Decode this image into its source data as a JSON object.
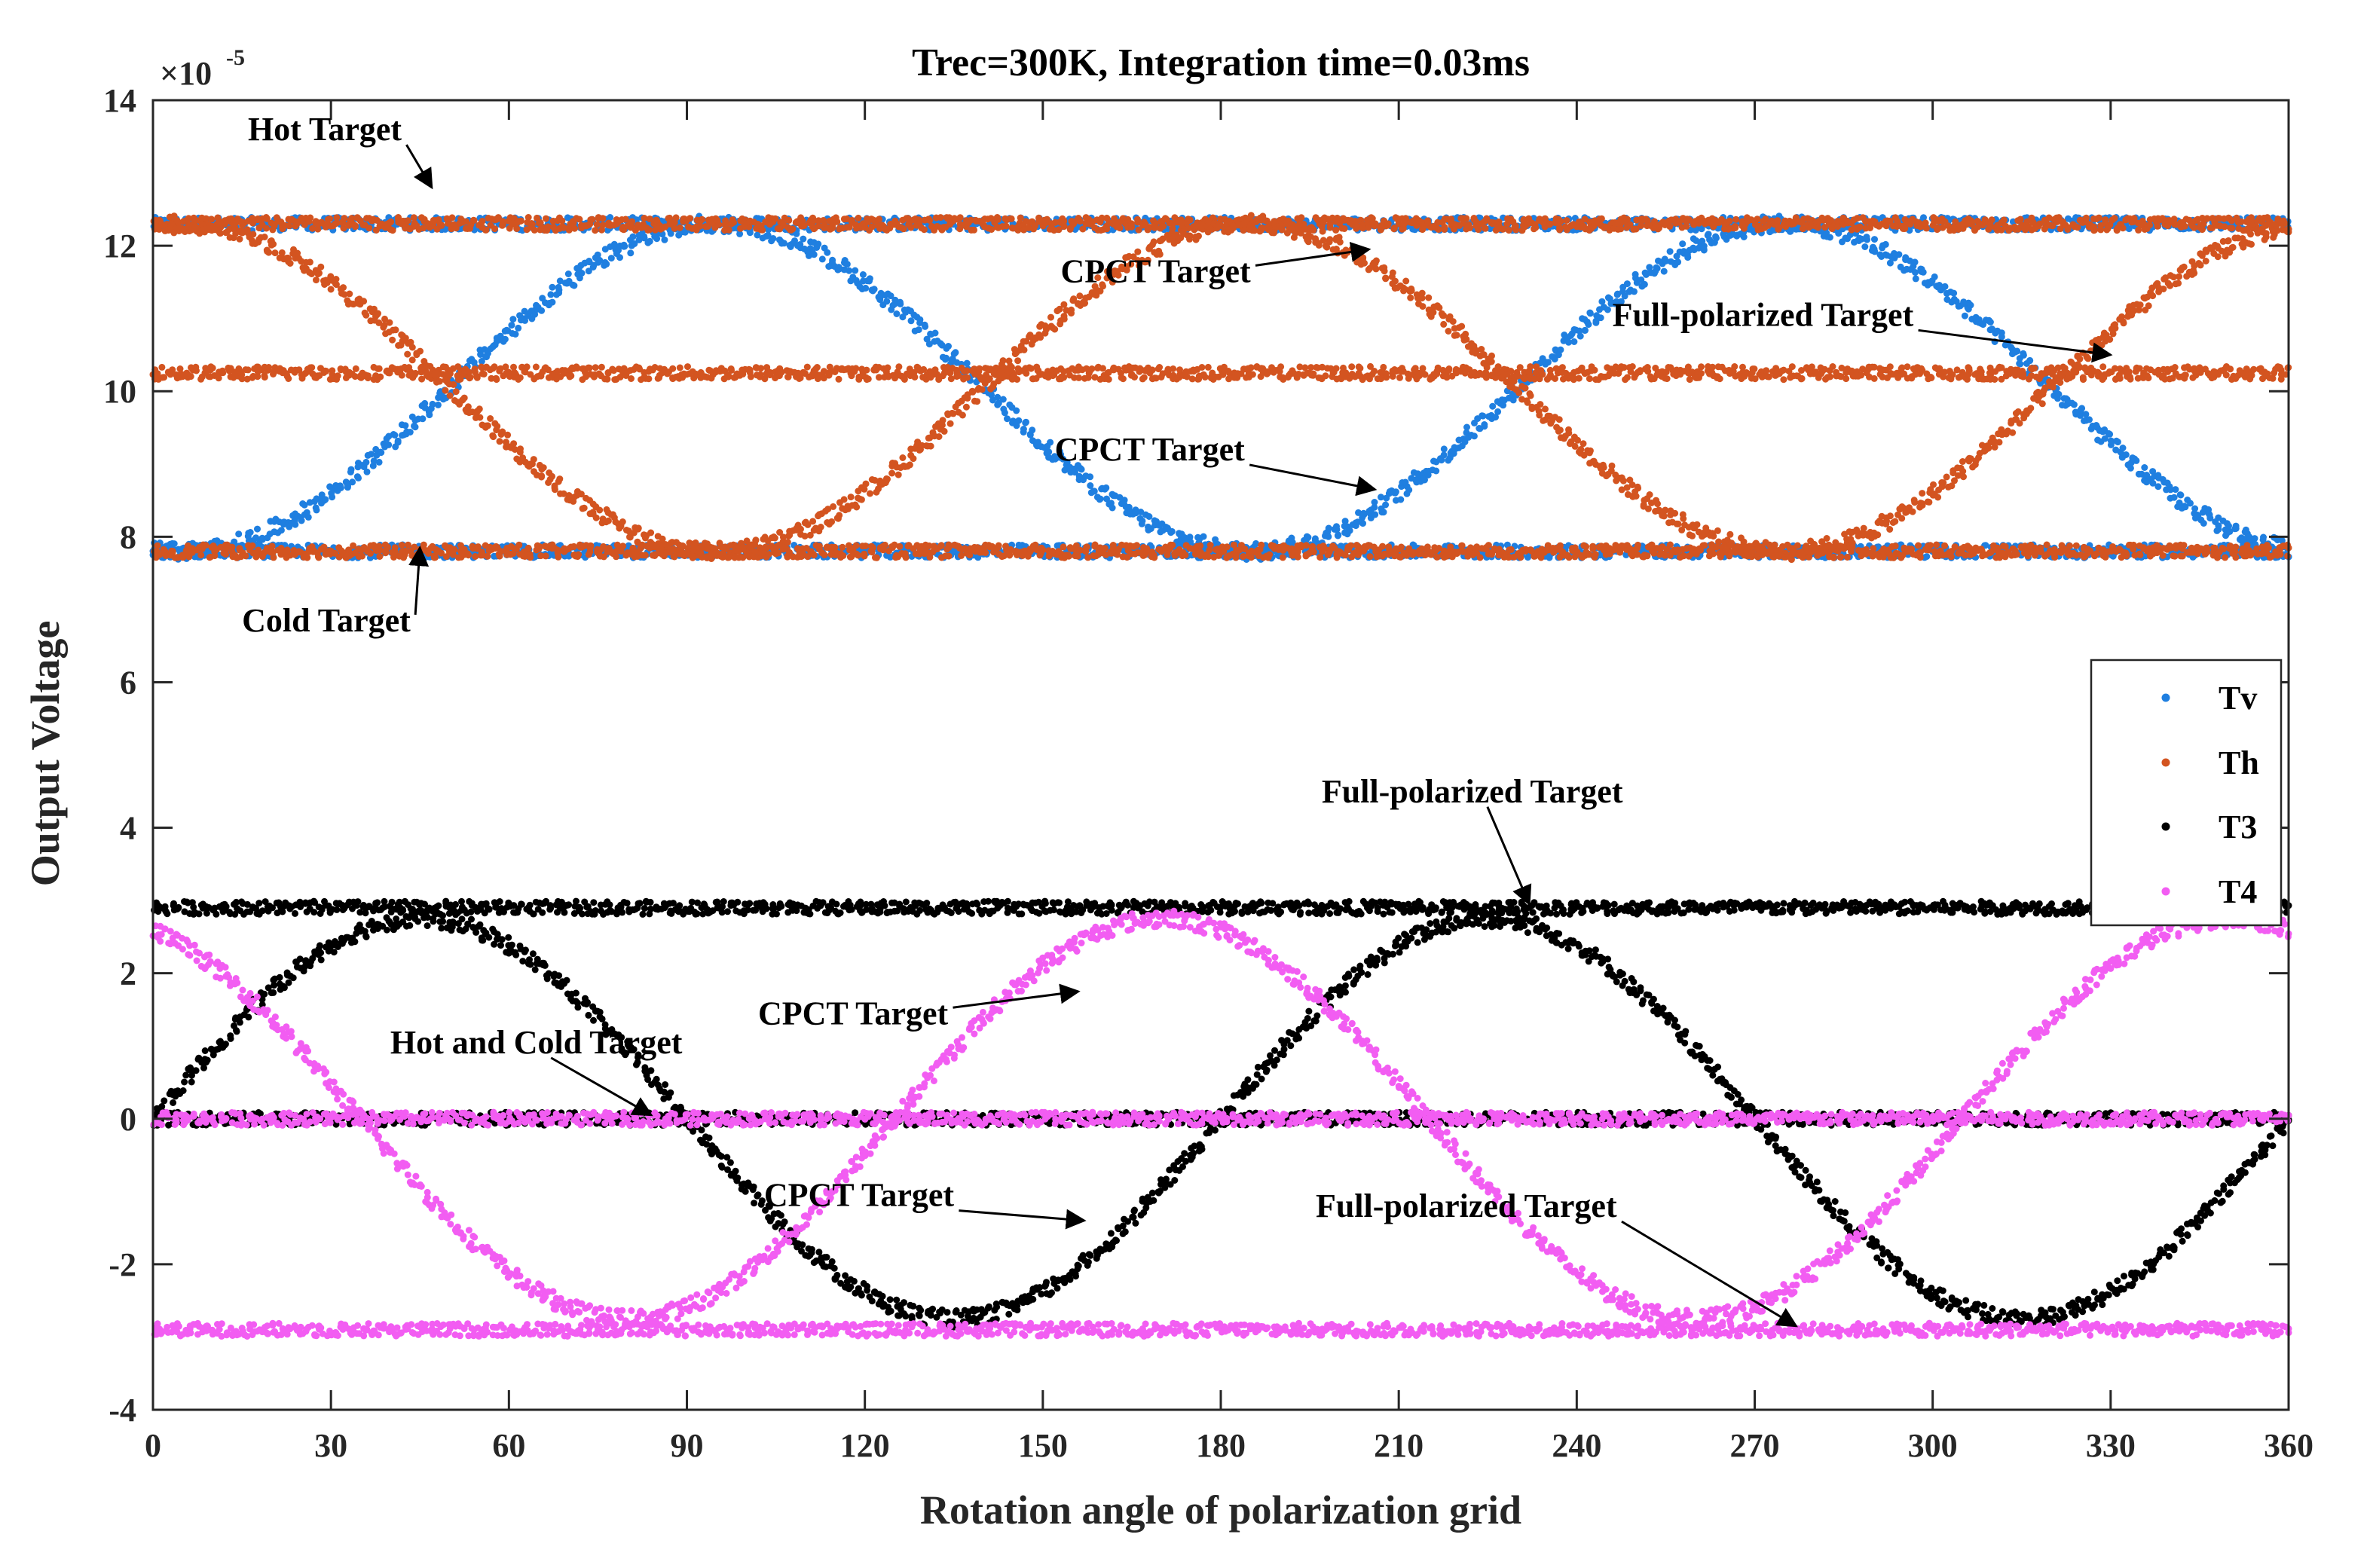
{
  "chart_data": {
    "type": "scatter",
    "title": "Trec=300K, Integration time=0.03ms",
    "xlabel": "Rotation angle of polarization grid",
    "ylabel": "Output Voltage",
    "y_exponent_base": "×10",
    "y_exponent_power": "-5",
    "xlim": [
      0,
      360
    ],
    "ylim": [
      -4,
      14
    ],
    "x_ticks": [
      0,
      30,
      60,
      90,
      120,
      150,
      180,
      210,
      240,
      270,
      300,
      330,
      360
    ],
    "y_ticks": [
      -4,
      -2,
      0,
      2,
      4,
      6,
      8,
      10,
      12,
      14
    ],
    "x_tick_labels": [
      "0",
      "30",
      "60",
      "90",
      "120",
      "150",
      "180",
      "210",
      "240",
      "270",
      "300",
      "330",
      "360"
    ],
    "y_tick_labels": [
      "-4",
      "-2",
      "0",
      "2",
      "4",
      "6",
      "8",
      "10",
      "12",
      "14"
    ],
    "grid": false,
    "legend_position": "right",
    "series": [
      {
        "name": "Tv",
        "color": "#1f7fe0",
        "components": [
          {
            "kind": "constant",
            "value": 12.3,
            "note": "Hot Target"
          },
          {
            "kind": "constant",
            "value": 7.8,
            "note": "Cold Target"
          },
          {
            "kind": "sinusoid",
            "mean": 10.05,
            "amplitude": -2.25,
            "phase_deg": 5,
            "note": "CPCT Target"
          }
        ]
      },
      {
        "name": "Th",
        "color": "#d35420",
        "components": [
          {
            "kind": "constant",
            "value": 12.3,
            "note": "Hot Target"
          },
          {
            "kind": "constant",
            "value": 10.25,
            "note": "Full-polarized Target"
          },
          {
            "kind": "constant",
            "value": 7.8,
            "note": "Cold Target"
          },
          {
            "kind": "sinusoid",
            "mean": 10.05,
            "amplitude": 2.25,
            "phase_deg": 5,
            "note": "CPCT Target"
          }
        ]
      },
      {
        "name": "T3",
        "color": "#000000",
        "components": [
          {
            "kind": "constant",
            "value": 2.9,
            "note": "Full-polarized Target"
          },
          {
            "kind": "constant",
            "value": 0.0,
            "note": "Hot and Cold Target"
          },
          {
            "kind": "sine",
            "amplitude": 2.75,
            "phase_deg": 0,
            "note": "CPCT Target"
          }
        ]
      },
      {
        "name": "T4",
        "color": "#f25df2",
        "components": [
          {
            "kind": "constant",
            "value": -2.9,
            "note": "Full-polarized Target"
          },
          {
            "kind": "constant",
            "value": 0.0,
            "note": "Hot and Cold Target"
          },
          {
            "kind": "sine",
            "amplitude": -2.75,
            "phase_deg": 35,
            "note": "CPCT Target"
          }
        ]
      }
    ],
    "annotations": [
      {
        "text": "Hot Target",
        "text_at": [
          16,
          13.45
        ],
        "arrow_to": [
          47,
          12.8
        ]
      },
      {
        "text": "CPCT Target",
        "text_at": [
          153,
          11.5
        ],
        "arrow_to": [
          205,
          11.95
        ]
      },
      {
        "text": "Full-polarized Target",
        "text_at": [
          246,
          10.9
        ],
        "arrow_to": [
          330,
          10.5
        ]
      },
      {
        "text": "CPCT Target",
        "text_at": [
          152,
          9.05
        ],
        "arrow_to": [
          206,
          8.65
        ]
      },
      {
        "text": "Cold Target",
        "text_at": [
          15,
          6.7
        ],
        "arrow_to": [
          45,
          7.85
        ]
      },
      {
        "text": "Full-polarized Target",
        "text_at": [
          197,
          4.35
        ],
        "arrow_to": [
          232,
          2.95
        ]
      },
      {
        "text": "CPCT Target",
        "text_at": [
          102,
          1.3
        ],
        "arrow_to": [
          156,
          1.75
        ]
      },
      {
        "text": "Hot and Cold Target",
        "text_at": [
          40,
          0.9
        ],
        "arrow_to": [
          84,
          0.05
        ]
      },
      {
        "text": "CPCT Target",
        "text_at": [
          103,
          -1.2
        ],
        "arrow_to": [
          157,
          -1.4
        ]
      },
      {
        "text": "Full-polarized Target",
        "text_at": [
          196,
          -1.35
        ],
        "arrow_to": [
          277,
          -2.85
        ]
      }
    ]
  }
}
